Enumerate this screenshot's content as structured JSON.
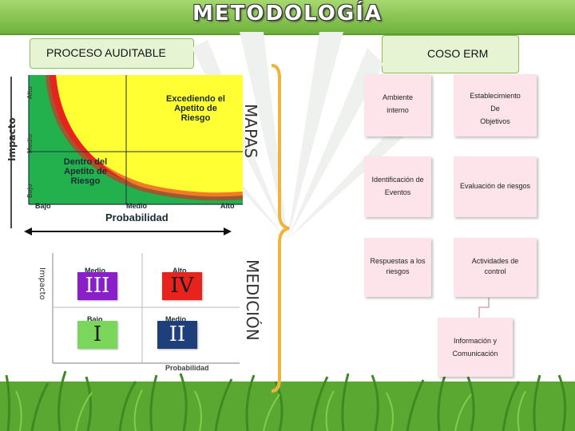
{
  "title": "METODOLOGÍA",
  "left_header": "PROCESO AUDITABLE",
  "right_header": "COSO ERM",
  "vertical_labels": {
    "mapas": "MAPAS",
    "medicion": "MEDICIÓN"
  },
  "heat_map": {
    "y_title": "Impacto",
    "y_ticks": [
      "Alto",
      "Medio",
      "Bajo"
    ],
    "x_title": "Probabilidad",
    "x_ticks": [
      "Bajo",
      "Medio",
      "Alto"
    ],
    "zone_above": "Excediendo el Apetito de Riesgo",
    "zone_below": "Dentro del Apetito de Riesgo",
    "colors": {
      "red": "#e8231e",
      "yellow": "#ffff33",
      "green": "#22b14c"
    }
  },
  "quadrant_matrix": {
    "y_title": "Impacto",
    "x_title": "Probabilidad",
    "cells": [
      {
        "label": "Medio",
        "numeral": "III",
        "color": "#8a1fc9"
      },
      {
        "label": "Alto",
        "numeral": "IV",
        "color": "#e8231e"
      },
      {
        "label": "Bajo",
        "numeral": "I",
        "color": "#7bd65c"
      },
      {
        "label": "Medio",
        "numeral": "II",
        "color": "#1f3f7a"
      }
    ]
  },
  "coso_components": [
    {
      "lines": [
        "Ambiente",
        "interno"
      ]
    },
    {
      "lines": [
        "Establecimiento",
        "De",
        "Objetivos"
      ]
    },
    {
      "lines": [
        "Identificación de",
        "Eventos"
      ]
    },
    {
      "lines": [
        "Evaluación de riesgos"
      ]
    },
    {
      "lines": [
        "Respuestas a los",
        "riesgos"
      ]
    },
    {
      "lines": [
        "Actividades de",
        "control"
      ]
    },
    {
      "lines": [
        "Información y",
        "Comunicación"
      ]
    }
  ]
}
